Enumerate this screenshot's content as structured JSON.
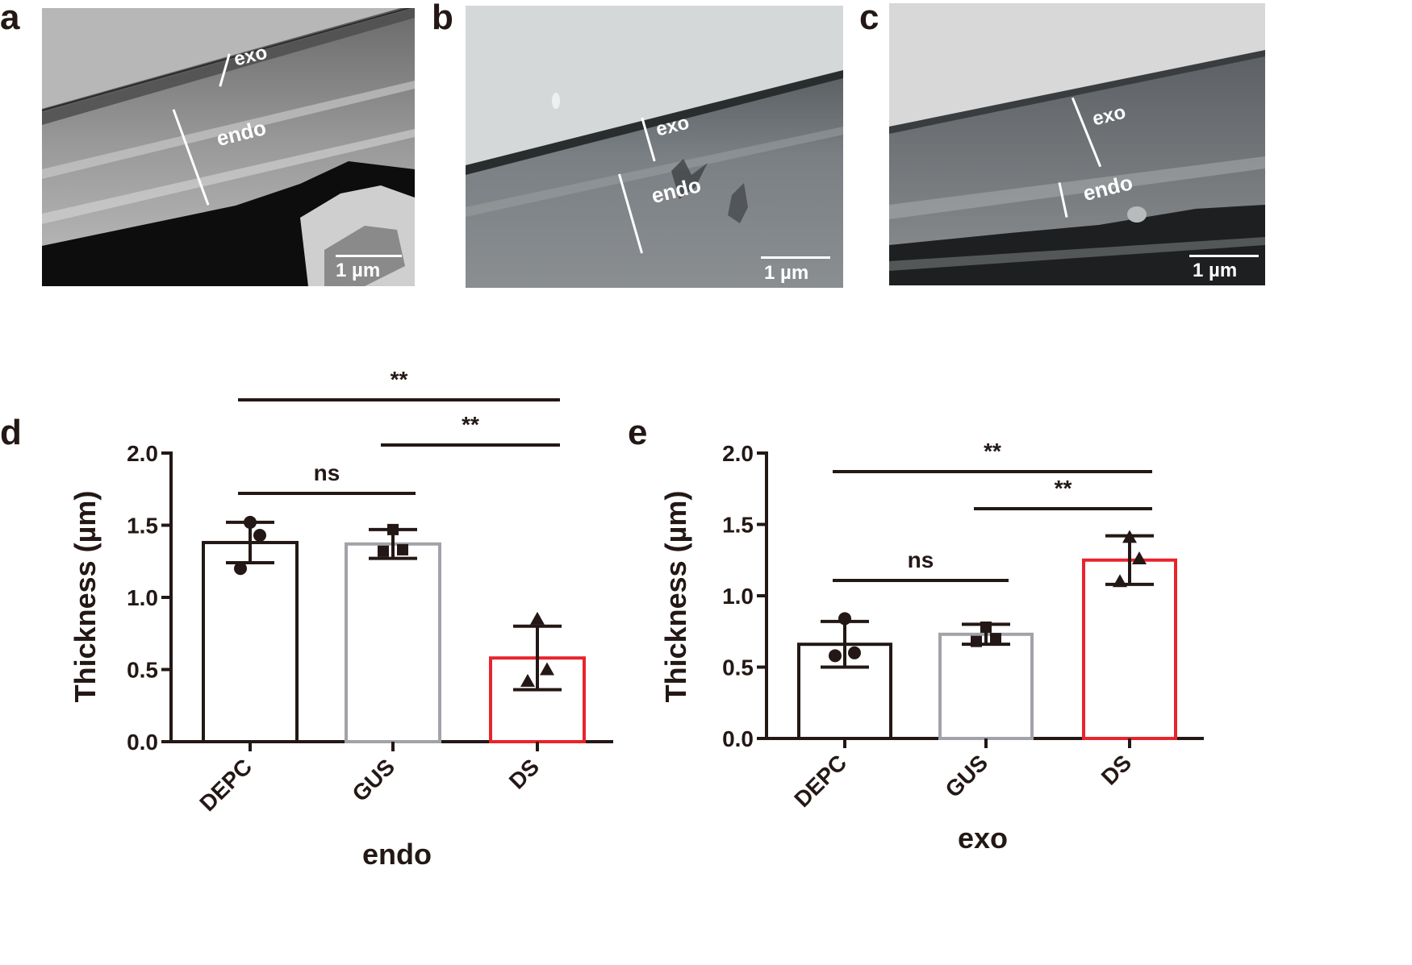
{
  "panels": {
    "a": "a",
    "b": "b",
    "c": "c",
    "d": "d",
    "e": "e"
  },
  "micrographs": [
    {
      "panel": "a",
      "labels": {
        "exo": "exo",
        "endo": "endo",
        "scale": "1 µm"
      }
    },
    {
      "panel": "b",
      "labels": {
        "exo": "exo",
        "endo": "endo",
        "scale": "1 µm"
      }
    },
    {
      "panel": "c",
      "labels": {
        "exo": "exo",
        "endo": "endo",
        "scale": "1 µm"
      }
    }
  ],
  "colors": {
    "DEPC": "#231815",
    "GUS": "#a2a3a8",
    "DS": "#e8242c",
    "text": "#231815"
  },
  "chart_data": [
    {
      "panel": "d",
      "type": "bar",
      "xlabel": "endo",
      "ylabel": "Thickness (µm)",
      "ylim": [
        0,
        2.0
      ],
      "yticks": [
        0.0,
        0.5,
        1.0,
        1.5,
        2.0
      ],
      "ytick_labels": [
        "0.0",
        "0.5",
        "1.0",
        "1.5",
        "2.0"
      ],
      "categories": [
        "DEPC",
        "GUS",
        "DS"
      ],
      "values": [
        1.38,
        1.37,
        0.58
      ],
      "error": [
        0.14,
        0.1,
        0.22
      ],
      "points": [
        [
          1.52,
          1.43,
          1.2
        ],
        [
          1.47,
          1.33,
          1.32
        ],
        [
          0.85,
          0.5,
          0.42
        ]
      ],
      "markers": [
        "circle",
        "square",
        "triangle"
      ],
      "significance": [
        {
          "from": "DEPC",
          "to": "GUS",
          "label": "ns"
        },
        {
          "from": "GUS",
          "to": "DS",
          "label": "**"
        },
        {
          "from": "DEPC",
          "to": "DS",
          "label": "**"
        }
      ]
    },
    {
      "panel": "e",
      "type": "bar",
      "xlabel": "exo",
      "ylabel": "Thickness (µm)",
      "ylim": [
        0,
        2.0
      ],
      "yticks": [
        0.0,
        0.5,
        1.0,
        1.5,
        2.0
      ],
      "ytick_labels": [
        "0.0",
        "0.5",
        "1.0",
        "1.5",
        "2.0"
      ],
      "categories": [
        "DEPC",
        "GUS",
        "DS"
      ],
      "values": [
        0.66,
        0.73,
        1.25
      ],
      "error": [
        0.16,
        0.07,
        0.17
      ],
      "points": [
        [
          0.84,
          0.6,
          0.58
        ],
        [
          0.78,
          0.7,
          0.68
        ],
        [
          1.41,
          1.26,
          1.1
        ]
      ],
      "markers": [
        "circle",
        "square",
        "triangle"
      ],
      "significance": [
        {
          "from": "DEPC",
          "to": "GUS",
          "label": "ns"
        },
        {
          "from": "GUS",
          "to": "DS",
          "label": "**"
        },
        {
          "from": "DEPC",
          "to": "DS",
          "label": "**"
        }
      ]
    }
  ]
}
